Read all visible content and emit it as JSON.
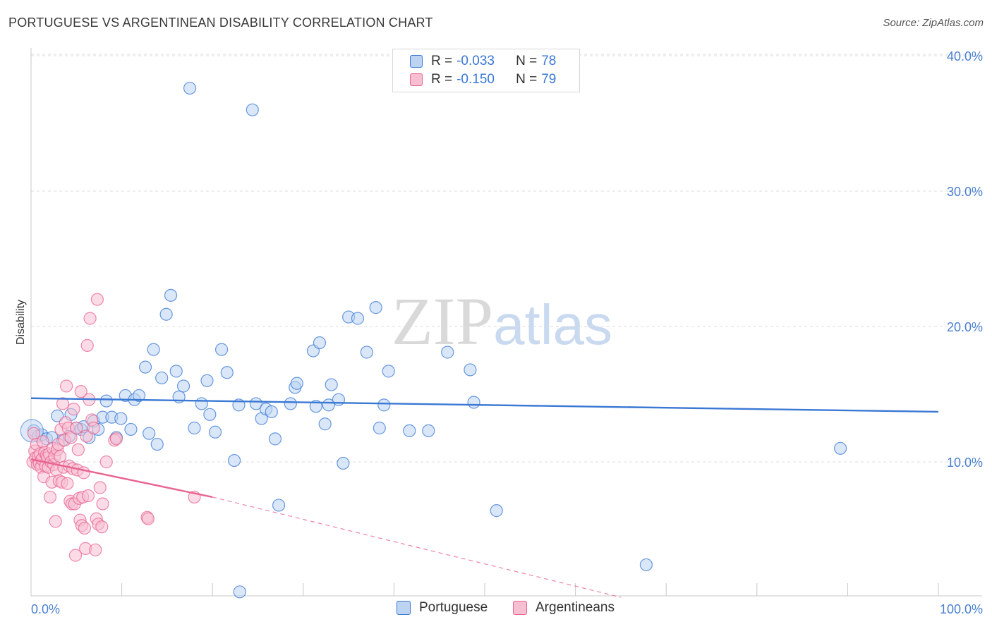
{
  "title": "PORTUGUESE VS ARGENTINEAN DISABILITY CORRELATION CHART",
  "source": "Source: ZipAtlas.com",
  "watermark": {
    "zip": "ZIP",
    "atlas": "atlas"
  },
  "legend": {
    "rows": [
      {
        "r_label": "R =",
        "r_value": "-0.033",
        "n_label": "N =",
        "n_value": "78"
      },
      {
        "r_label": "R =",
        "r_value": "-0.150",
        "n_label": "N =",
        "n_value": "79"
      }
    ]
  },
  "colors": {
    "portuguese": "#3a78d4",
    "portuguese_fill": "#bcd3f2",
    "argentineans": "#e8648f",
    "argentineans_fill": "#f7bfd1",
    "grid": "#dcdcdc"
  },
  "chart_data": {
    "type": "scatter",
    "title": "PORTUGUESE VS ARGENTINEAN DISABILITY CORRELATION CHART",
    "xlabel": "",
    "ylabel": "Disability",
    "xlim": [
      0,
      100
    ],
    "ylim": [
      0,
      42
    ],
    "x_tick_labels": [
      "0.0%",
      "100.0%"
    ],
    "y_ticks": [
      10,
      20,
      30,
      40
    ],
    "y_tick_labels": [
      "10.0%",
      "20.0%",
      "30.0%",
      "40.0%"
    ],
    "grid": true,
    "legend_position": "bottom",
    "series": [
      {
        "name": "Portuguese",
        "color": "#3a78d4",
        "r": -0.033,
        "n": 78,
        "trend": {
          "x": [
            0,
            100
          ],
          "y": [
            14.7,
            13.7
          ],
          "dashed_to": null
        },
        "points": [
          [
            0.3,
            12.3
          ],
          [
            0.8,
            11.9
          ],
          [
            1.2,
            12.0
          ],
          [
            1.7,
            11.7
          ],
          [
            2.3,
            11.8
          ],
          [
            2.9,
            13.4
          ],
          [
            3.5,
            11.6
          ],
          [
            4.2,
            11.9
          ],
          [
            4.4,
            13.5
          ],
          [
            5.0,
            12.5
          ],
          [
            5.5,
            12.4
          ],
          [
            5.8,
            12.6
          ],
          [
            6.4,
            11.8
          ],
          [
            6.9,
            13.0
          ],
          [
            7.4,
            12.4
          ],
          [
            7.9,
            13.3
          ],
          [
            8.3,
            14.5
          ],
          [
            8.9,
            13.3
          ],
          [
            9.4,
            11.8
          ],
          [
            9.9,
            13.2
          ],
          [
            10.4,
            14.9
          ],
          [
            11.0,
            12.4
          ],
          [
            11.4,
            14.6
          ],
          [
            11.9,
            14.9
          ],
          [
            12.6,
            17.0
          ],
          [
            13.0,
            12.1
          ],
          [
            13.5,
            18.3
          ],
          [
            13.9,
            11.3
          ],
          [
            14.4,
            16.2
          ],
          [
            14.9,
            20.9
          ],
          [
            15.4,
            22.3
          ],
          [
            16.0,
            16.7
          ],
          [
            16.3,
            14.8
          ],
          [
            16.8,
            15.6
          ],
          [
            17.5,
            37.6
          ],
          [
            18.0,
            12.5
          ],
          [
            18.8,
            14.3
          ],
          [
            19.4,
            16.0
          ],
          [
            19.7,
            13.5
          ],
          [
            20.3,
            12.2
          ],
          [
            21.0,
            18.3
          ],
          [
            21.6,
            16.6
          ],
          [
            22.4,
            10.1
          ],
          [
            22.9,
            14.2
          ],
          [
            23.0,
            0.4
          ],
          [
            24.4,
            36.0
          ],
          [
            24.8,
            14.3
          ],
          [
            25.4,
            13.2
          ],
          [
            25.9,
            13.9
          ],
          [
            26.5,
            13.7
          ],
          [
            26.9,
            11.7
          ],
          [
            27.3,
            6.8
          ],
          [
            28.6,
            14.3
          ],
          [
            29.1,
            15.5
          ],
          [
            29.3,
            15.8
          ],
          [
            31.1,
            18.2
          ],
          [
            31.4,
            14.1
          ],
          [
            31.8,
            18.8
          ],
          [
            32.4,
            12.8
          ],
          [
            32.8,
            14.2
          ],
          [
            33.1,
            15.7
          ],
          [
            33.9,
            14.6
          ],
          [
            34.4,
            9.9
          ],
          [
            35.0,
            20.7
          ],
          [
            36.0,
            20.6
          ],
          [
            37.0,
            18.1
          ],
          [
            38.0,
            21.4
          ],
          [
            38.4,
            12.5
          ],
          [
            38.9,
            14.2
          ],
          [
            39.4,
            16.7
          ],
          [
            41.7,
            12.3
          ],
          [
            43.8,
            12.3
          ],
          [
            45.9,
            18.1
          ],
          [
            48.4,
            16.8
          ],
          [
            48.8,
            14.4
          ],
          [
            51.3,
            6.4
          ],
          [
            67.8,
            2.4
          ],
          [
            89.2,
            11.0
          ]
        ]
      },
      {
        "name": "Argentineans",
        "color": "#e8648f",
        "r": -0.15,
        "n": 79,
        "trend": {
          "x": [
            0,
            20
          ],
          "y": [
            10.2,
            7.4
          ],
          "dashed_to": [
            65,
            0
          ]
        },
        "points": [
          [
            0.2,
            10.0
          ],
          [
            0.3,
            12.1
          ],
          [
            0.4,
            10.8
          ],
          [
            0.5,
            10.3
          ],
          [
            0.6,
            11.3
          ],
          [
            0.7,
            9.8
          ],
          [
            0.8,
            10.4
          ],
          [
            0.9,
            9.9
          ],
          [
            1.0,
            10.6
          ],
          [
            1.1,
            9.6
          ],
          [
            1.2,
            10.2
          ],
          [
            1.3,
            11.5
          ],
          [
            1.4,
            8.9
          ],
          [
            1.5,
            10.7
          ],
          [
            1.6,
            9.7
          ],
          [
            1.7,
            10.5
          ],
          [
            1.8,
            10.3
          ],
          [
            1.9,
            9.6
          ],
          [
            2.0,
            10.6
          ],
          [
            2.1,
            7.4
          ],
          [
            2.2,
            10.0
          ],
          [
            2.3,
            8.5
          ],
          [
            2.4,
            11.0
          ],
          [
            2.5,
            9.8
          ],
          [
            2.6,
            10.4
          ],
          [
            2.7,
            5.6
          ],
          [
            2.8,
            9.4
          ],
          [
            2.9,
            10.9
          ],
          [
            3.0,
            11.3
          ],
          [
            3.1,
            8.6
          ],
          [
            3.2,
            10.4
          ],
          [
            3.3,
            12.4
          ],
          [
            3.4,
            8.5
          ],
          [
            3.5,
            14.3
          ],
          [
            3.6,
            9.6
          ],
          [
            3.7,
            11.6
          ],
          [
            3.8,
            12.9
          ],
          [
            3.9,
            15.6
          ],
          [
            4.0,
            8.4
          ],
          [
            4.1,
            12.5
          ],
          [
            4.2,
            9.7
          ],
          [
            4.3,
            7.1
          ],
          [
            4.4,
            11.8
          ],
          [
            4.5,
            6.9
          ],
          [
            4.6,
            9.5
          ],
          [
            4.7,
            13.9
          ],
          [
            4.8,
            6.9
          ],
          [
            4.9,
            3.1
          ],
          [
            5.0,
            12.5
          ],
          [
            5.1,
            9.4
          ],
          [
            5.2,
            10.9
          ],
          [
            5.3,
            7.3
          ],
          [
            5.4,
            5.7
          ],
          [
            5.5,
            15.2
          ],
          [
            5.6,
            5.3
          ],
          [
            5.7,
            7.4
          ],
          [
            5.8,
            9.2
          ],
          [
            5.9,
            5.1
          ],
          [
            6.0,
            3.6
          ],
          [
            6.1,
            11.9
          ],
          [
            6.2,
            18.6
          ],
          [
            6.3,
            7.5
          ],
          [
            6.4,
            14.6
          ],
          [
            6.5,
            20.6
          ],
          [
            6.7,
            13.1
          ],
          [
            6.9,
            12.5
          ],
          [
            7.1,
            3.5
          ],
          [
            7.2,
            5.8
          ],
          [
            7.3,
            22.0
          ],
          [
            7.4,
            5.4
          ],
          [
            7.6,
            8.1
          ],
          [
            7.8,
            5.2
          ],
          [
            7.9,
            6.9
          ],
          [
            8.3,
            10.0
          ],
          [
            9.2,
            11.6
          ],
          [
            9.4,
            11.7
          ],
          [
            12.8,
            5.9
          ],
          [
            12.9,
            5.8
          ],
          [
            18.0,
            7.4
          ]
        ]
      }
    ]
  }
}
